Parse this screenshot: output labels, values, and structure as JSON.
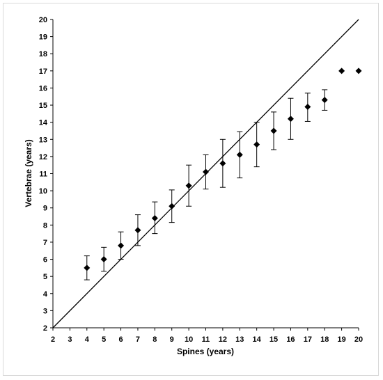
{
  "chart_data": {
    "type": "scatter",
    "xlabel": "Spines (years)",
    "ylabel": "Vertebrae (years)",
    "xlim": [
      2,
      20
    ],
    "ylim": [
      2,
      20
    ],
    "xticks": [
      2,
      3,
      4,
      5,
      6,
      7,
      8,
      9,
      10,
      11,
      12,
      13,
      14,
      15,
      16,
      17,
      18,
      19,
      20
    ],
    "yticks": [
      2,
      3,
      4,
      5,
      6,
      7,
      8,
      9,
      10,
      11,
      12,
      13,
      14,
      15,
      16,
      17,
      18,
      19,
      20
    ],
    "grid": false,
    "marker": "diamond",
    "marker_color": "#000000",
    "reference_line": {
      "from": [
        2,
        2
      ],
      "to": [
        20,
        20
      ]
    },
    "points": [
      {
        "x": 4,
        "y": 5.5,
        "err_low": 4.8,
        "err_high": 6.2
      },
      {
        "x": 5,
        "y": 6.0,
        "err_low": 5.3,
        "err_high": 6.7
      },
      {
        "x": 6,
        "y": 6.8,
        "err_low": 6.0,
        "err_high": 7.6
      },
      {
        "x": 7,
        "y": 7.7,
        "err_low": 6.8,
        "err_high": 8.6
      },
      {
        "x": 8,
        "y": 8.4,
        "err_low": 7.5,
        "err_high": 9.35
      },
      {
        "x": 9,
        "y": 9.1,
        "err_low": 8.15,
        "err_high": 10.05
      },
      {
        "x": 10,
        "y": 10.3,
        "err_low": 9.1,
        "err_high": 11.5
      },
      {
        "x": 11,
        "y": 11.1,
        "err_low": 10.1,
        "err_high": 12.1
      },
      {
        "x": 12,
        "y": 11.6,
        "err_low": 10.2,
        "err_high": 13.0
      },
      {
        "x": 13,
        "y": 12.1,
        "err_low": 10.75,
        "err_high": 13.45
      },
      {
        "x": 14,
        "y": 12.7,
        "err_low": 11.4,
        "err_high": 14.0
      },
      {
        "x": 15,
        "y": 13.5,
        "err_low": 12.4,
        "err_high": 14.6
      },
      {
        "x": 16,
        "y": 14.2,
        "err_low": 13.0,
        "err_high": 15.4
      },
      {
        "x": 17,
        "y": 14.9,
        "err_low": 14.05,
        "err_high": 15.7
      },
      {
        "x": 18,
        "y": 15.3,
        "err_low": 14.7,
        "err_high": 15.9
      },
      {
        "x": 19,
        "y": 17.0
      },
      {
        "x": 20,
        "y": 17.0
      }
    ]
  }
}
